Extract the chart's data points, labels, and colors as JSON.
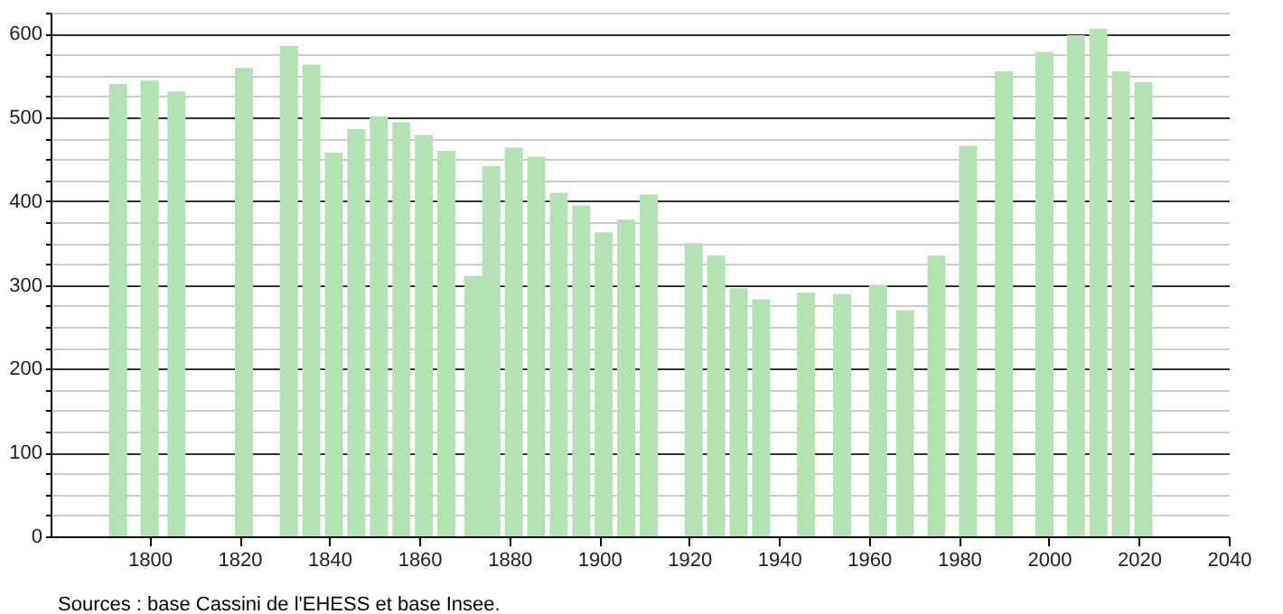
{
  "chart_data": {
    "type": "bar",
    "x": [
      1793,
      1800,
      1806,
      1821,
      1831,
      1836,
      1841,
      1846,
      1851,
      1856,
      1861,
      1866,
      1872,
      1876,
      1881,
      1886,
      1891,
      1896,
      1901,
      1906,
      1911,
      1921,
      1926,
      1931,
      1936,
      1946,
      1954,
      1962,
      1968,
      1975,
      1982,
      1990,
      1999,
      2006,
      2011,
      2016,
      2021
    ],
    "values": [
      540,
      544,
      531,
      559,
      585,
      563,
      458,
      486,
      501,
      494,
      479,
      460,
      311,
      442,
      464,
      453,
      410,
      395,
      363,
      378,
      408,
      350,
      335,
      296,
      283,
      291,
      289,
      300,
      270,
      335,
      466,
      555,
      578,
      598,
      606,
      555,
      542
    ],
    "color": "#b3e3b3",
    "xlim": [
      1778,
      2040
    ],
    "xticks": [
      1800,
      1820,
      1840,
      1860,
      1880,
      1900,
      1920,
      1940,
      1960,
      1980,
      2000,
      2020,
      2040
    ],
    "ylim": [
      0,
      625
    ],
    "yticks": [
      0,
      {
        "value": 25,
        "label": null
      },
      {
        "value": 50,
        "label": null
      },
      {
        "value": 75,
        "label": null
      },
      100,
      {
        "value": 125,
        "label": null
      },
      {
        "value": 150,
        "label": null
      },
      {
        "value": 175,
        "label": null
      },
      200,
      {
        "value": 225,
        "label": null
      },
      {
        "value": 250,
        "label": null
      },
      {
        "value": 275,
        "label": null
      },
      300,
      {
        "value": 325,
        "label": null
      },
      {
        "value": 350,
        "label": null
      },
      {
        "value": 375,
        "label": null
      },
      400,
      {
        "value": 425,
        "label": null
      },
      {
        "value": 450,
        "label": null
      },
      {
        "value": 475,
        "label": null
      },
      500,
      {
        "value": 525,
        "label": null
      },
      {
        "value": 550,
        "label": null
      },
      {
        "value": 575,
        "label": null
      },
      600,
      {
        "value": 625,
        "label": null
      }
    ],
    "grid": "y",
    "annotations": [
      "Sources : base Cassini de l'EHESS et base Insee."
    ]
  }
}
